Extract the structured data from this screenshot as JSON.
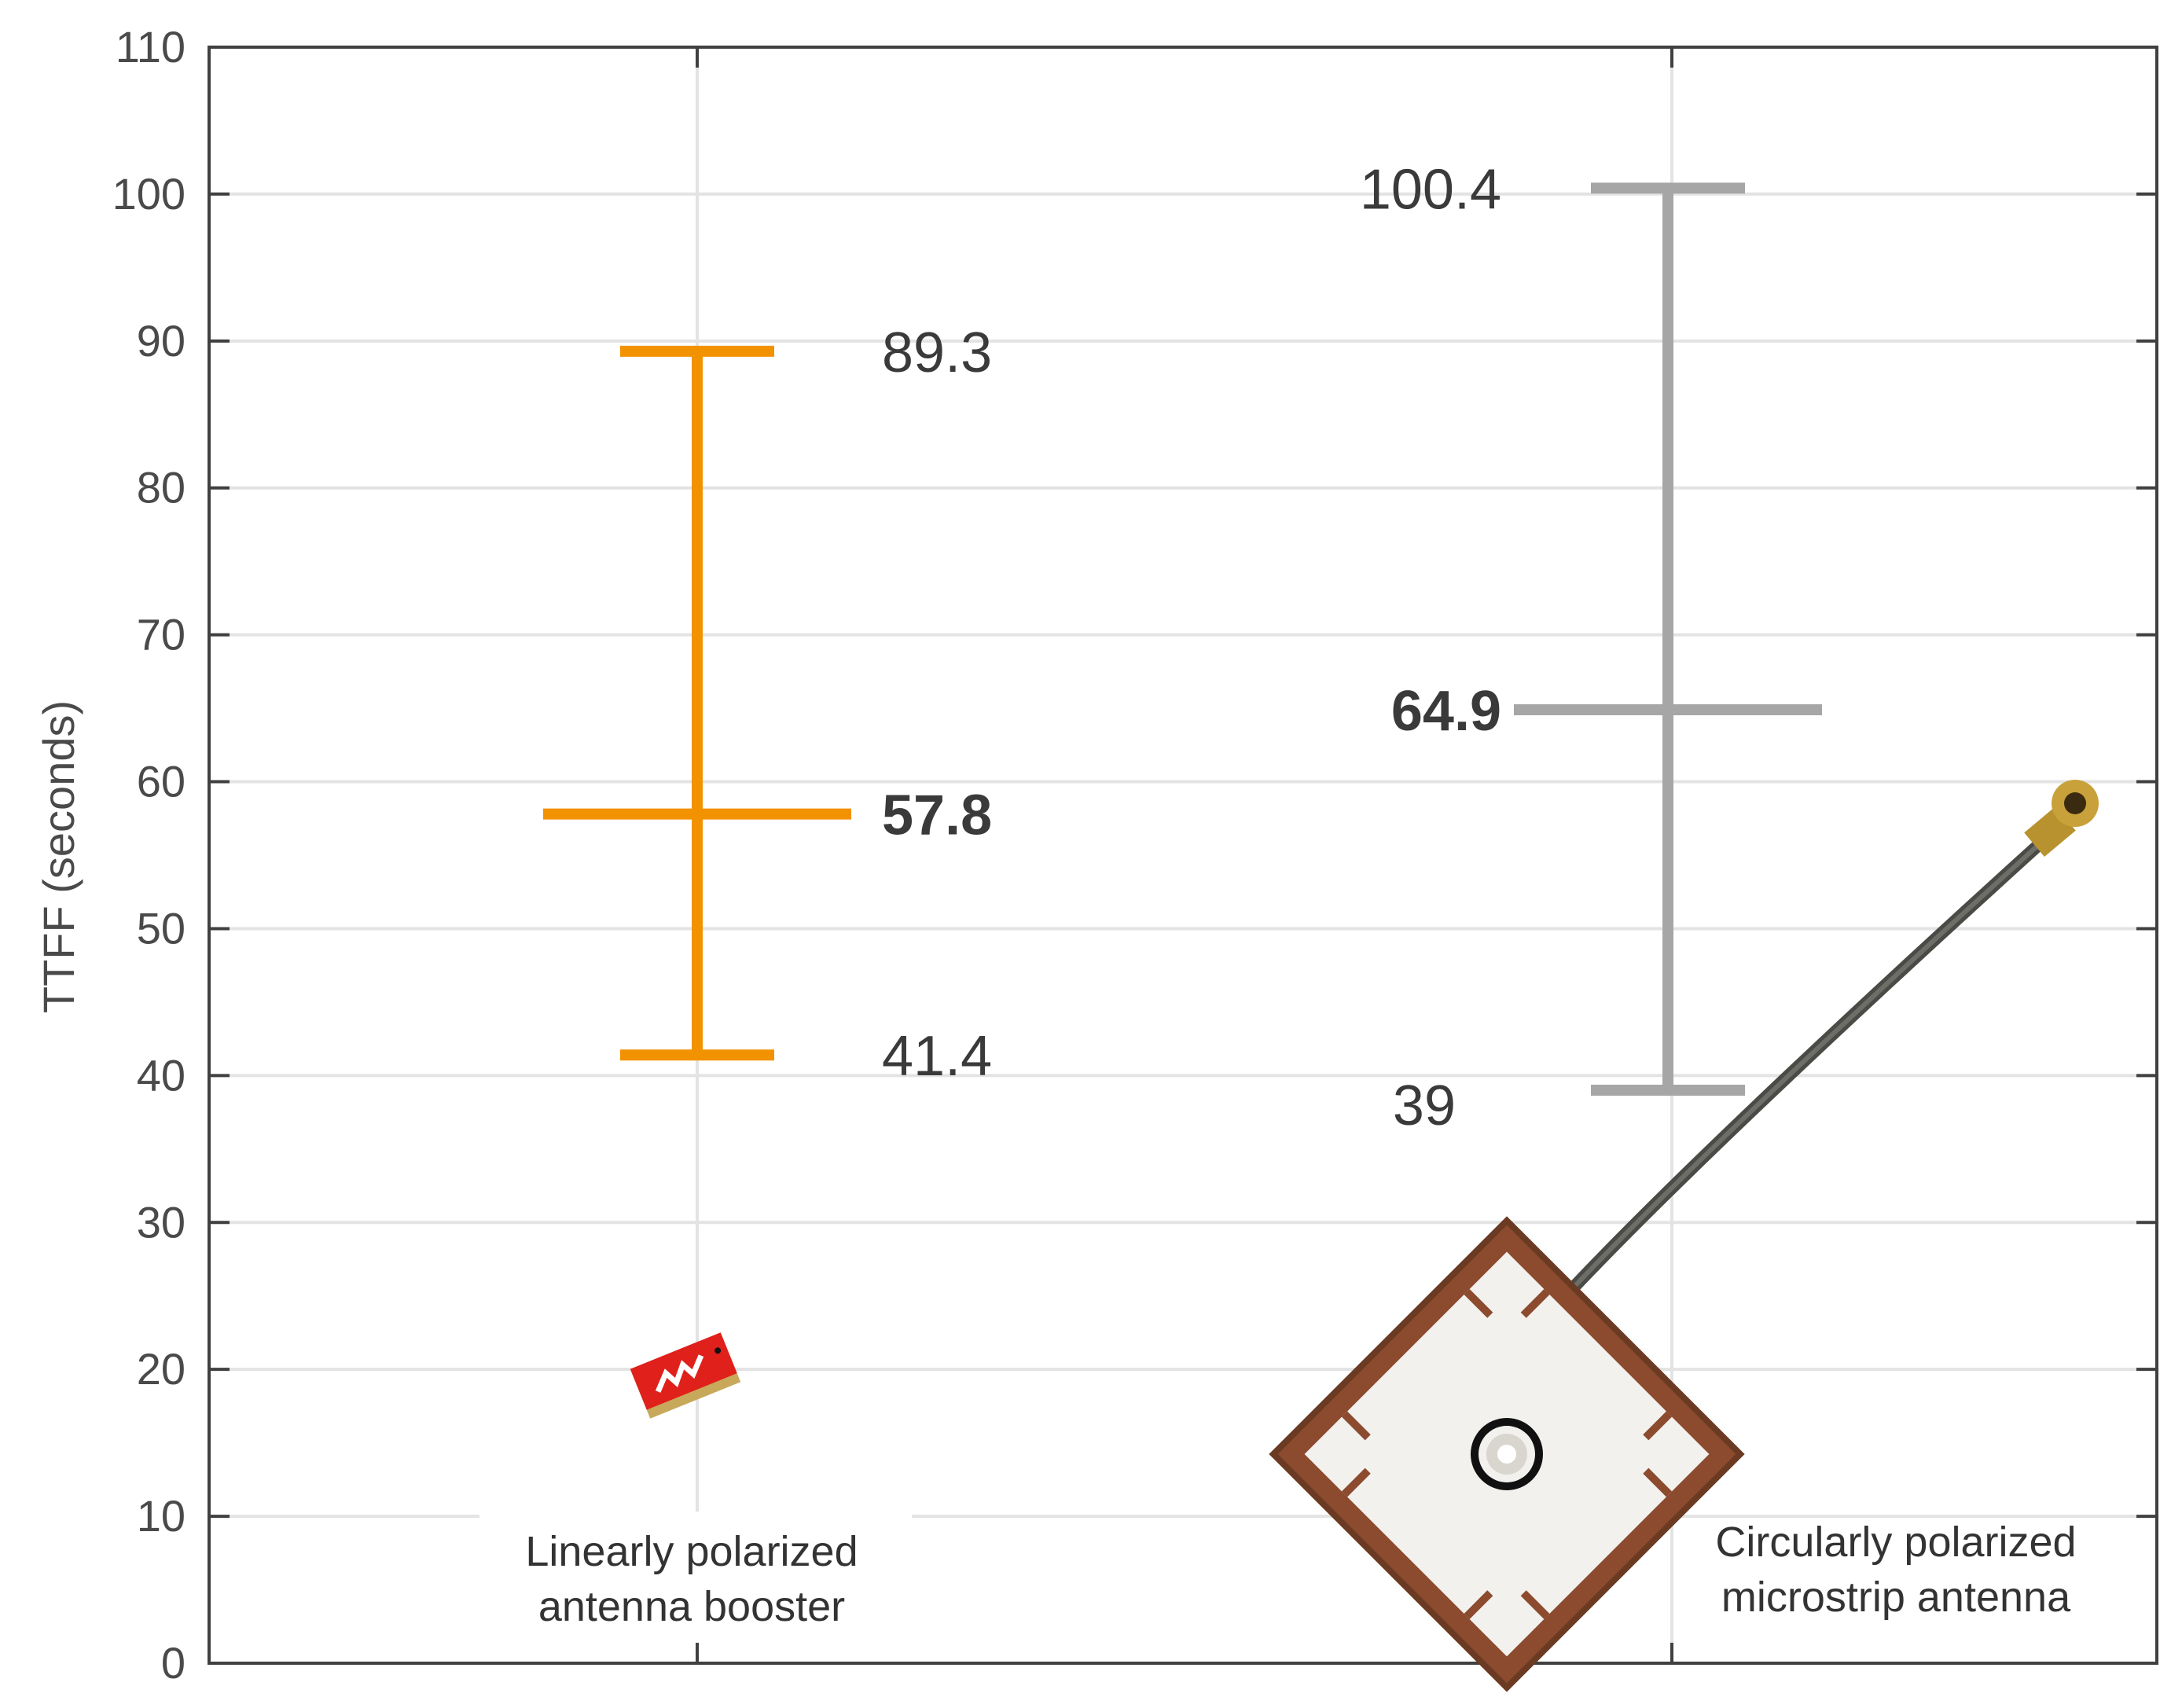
{
  "chart_data": {
    "type": "errorbar",
    "ylabel": "TTFF (seconds)",
    "ylim": [
      0,
      110
    ],
    "yticks": [
      0,
      10,
      20,
      30,
      40,
      50,
      60,
      70,
      80,
      90,
      100,
      110
    ],
    "ytick_labels": [
      "0",
      "10",
      "20",
      "30",
      "40",
      "50",
      "60",
      "70",
      "80",
      "90",
      "100",
      "110"
    ],
    "grid": true,
    "categories": [
      {
        "name_lines": [
          "Linearly polarized",
          "antenna booster"
        ],
        "color": "#f39200",
        "min": 41.4,
        "mean": 57.8,
        "max": 89.3,
        "labels": {
          "min": "41.4",
          "mean": "57.8",
          "max": "89.3"
        },
        "label_side": "right",
        "image": "chip-antenna-booster"
      },
      {
        "name_lines": [
          "Circularly polarized",
          "microstrip antenna"
        ],
        "color": "#a6a6a6",
        "min": 39,
        "mean": 64.9,
        "max": 100.4,
        "labels": {
          "min": "39",
          "mean": "64.9",
          "max": "100.4"
        },
        "label_side": "left",
        "image": "patch-antenna-with-cable"
      }
    ]
  }
}
